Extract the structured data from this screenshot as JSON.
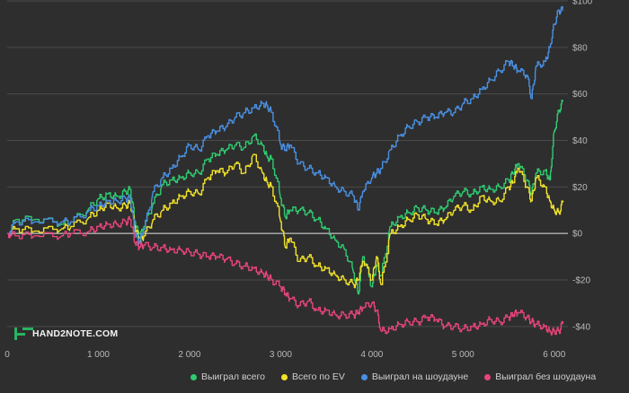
{
  "watermark": "HAND2NOTE.COM",
  "chart_data": {
    "type": "line",
    "title": "",
    "xlabel": "",
    "ylabel": "",
    "xlim": [
      0,
      6150
    ],
    "ylim": [
      -47,
      100
    ],
    "x_ticks": [
      0,
      1000,
      2000,
      3000,
      4000,
      5000,
      6000
    ],
    "x_tick_labels": [
      "0",
      "1 000",
      "2 000",
      "3 000",
      "4 000",
      "5 000",
      "6 000"
    ],
    "y_ticks": [
      100,
      80,
      60,
      40,
      20,
      0,
      -20,
      -40
    ],
    "y_tick_labels": [
      "$100",
      "$80",
      "$60",
      "$40",
      "$20",
      "$0",
      "-$20",
      "-$40"
    ],
    "grid": true,
    "legend_position": "bottom",
    "series": [
      {
        "name": "Выиграл всего",
        "color": "#2ecc71",
        "x": [
          0,
          100,
          300,
          600,
          700,
          900,
          1000,
          1100,
          1200,
          1300,
          1350,
          1400,
          1450,
          1500,
          1600,
          1700,
          1800,
          1900,
          2000,
          2100,
          2200,
          2300,
          2400,
          2500,
          2600,
          2700,
          2800,
          2850,
          2900,
          3000,
          3050,
          3100,
          3200,
          3300,
          3400,
          3500,
          3600,
          3700,
          3800,
          3850,
          3900,
          4000,
          4050,
          4100,
          4200,
          4300,
          4400,
          4500,
          4600,
          4700,
          4800,
          4900,
          5000,
          5100,
          5200,
          5300,
          5400,
          5500,
          5550,
          5600,
          5700,
          5750,
          5800,
          5900,
          5950,
          6000,
          6050,
          6100
        ],
        "values": [
          0,
          6,
          6,
          4,
          5,
          11,
          15,
          17,
          16,
          18,
          19,
          5,
          -2,
          3,
          13,
          21,
          23,
          24,
          26,
          26,
          32,
          34,
          36,
          38,
          37,
          42,
          38,
          33,
          32,
          15,
          7,
          10,
          10,
          9,
          6,
          2,
          -3,
          -7,
          -17,
          -26,
          -10,
          -23,
          -14,
          -18,
          3,
          7,
          9,
          11,
          10,
          9,
          11,
          16,
          18,
          17,
          20,
          19,
          20,
          23,
          26,
          30,
          23,
          17,
          26,
          27,
          23,
          44,
          53,
          57
        ]
      },
      {
        "name": "Всего по EV",
        "color": "#f1e229",
        "x": [
          0,
          100,
          300,
          600,
          700,
          900,
          1000,
          1100,
          1200,
          1300,
          1350,
          1400,
          1450,
          1500,
          1600,
          1700,
          1800,
          1900,
          2000,
          2100,
          2200,
          2300,
          2400,
          2500,
          2600,
          2700,
          2800,
          2850,
          2900,
          3000,
          3050,
          3100,
          3200,
          3300,
          3400,
          3500,
          3600,
          3700,
          3800,
          3850,
          3900,
          4000,
          4050,
          4100,
          4200,
          4300,
          4400,
          4500,
          4600,
          4700,
          4800,
          4900,
          5000,
          5100,
          5200,
          5300,
          5400,
          5500,
          5550,
          5600,
          5700,
          5750,
          5800,
          5900,
          5950,
          6000,
          6050,
          6100
        ],
        "values": [
          0,
          2,
          1,
          2,
          3,
          7,
          10,
          13,
          11,
          12,
          13,
          3,
          -4,
          -1,
          6,
          10,
          13,
          16,
          18,
          17,
          24,
          27,
          26,
          30,
          26,
          34,
          26,
          22,
          20,
          5,
          -6,
          -2,
          -12,
          -10,
          -14,
          -15,
          -18,
          -20,
          -22,
          -20,
          -12,
          -20,
          -10,
          -22,
          0,
          3,
          6,
          8,
          6,
          4,
          6,
          10,
          12,
          10,
          16,
          14,
          14,
          20,
          22,
          28,
          20,
          14,
          24,
          20,
          14,
          10,
          9,
          14
        ]
      },
      {
        "name": "Выиграл на шоудауне",
        "color": "#4a90e2",
        "x": [
          0,
          100,
          300,
          600,
          700,
          900,
          1000,
          1100,
          1200,
          1300,
          1350,
          1400,
          1450,
          1500,
          1600,
          1700,
          1800,
          1900,
          2000,
          2100,
          2200,
          2300,
          2400,
          2500,
          2600,
          2700,
          2800,
          2850,
          2900,
          3000,
          3050,
          3100,
          3200,
          3300,
          3400,
          3500,
          3600,
          3700,
          3800,
          3850,
          3900,
          4000,
          4050,
          4100,
          4200,
          4300,
          4400,
          4500,
          4600,
          4700,
          4800,
          4900,
          5000,
          5100,
          5200,
          5300,
          5400,
          5500,
          5550,
          5600,
          5700,
          5750,
          5800,
          5900,
          5950,
          6000,
          6050,
          6100
        ],
        "values": [
          0,
          5,
          5,
          5,
          5,
          10,
          12,
          14,
          14,
          15,
          15,
          0,
          -4,
          2,
          18,
          24,
          28,
          33,
          38,
          36,
          42,
          44,
          46,
          50,
          52,
          54,
          56,
          55,
          52,
          38,
          36,
          38,
          30,
          28,
          26,
          24,
          20,
          18,
          16,
          10,
          18,
          24,
          26,
          28,
          36,
          42,
          46,
          48,
          50,
          50,
          52,
          52,
          56,
          58,
          62,
          66,
          70,
          74,
          72,
          70,
          68,
          58,
          72,
          74,
          80,
          90,
          96,
          96
        ]
      },
      {
        "name": "Выиграл без шоудауна",
        "color": "#e8457a",
        "x": [
          0,
          100,
          300,
          600,
          700,
          900,
          1000,
          1100,
          1200,
          1300,
          1350,
          1400,
          1450,
          1500,
          1600,
          1700,
          1800,
          1900,
          2000,
          2100,
          2200,
          2300,
          2400,
          2500,
          2600,
          2700,
          2800,
          2850,
          2900,
          3000,
          3050,
          3100,
          3200,
          3300,
          3400,
          3500,
          3600,
          3700,
          3800,
          3850,
          3900,
          4000,
          4050,
          4100,
          4200,
          4300,
          4400,
          4500,
          4600,
          4700,
          4800,
          4900,
          5000,
          5100,
          5200,
          5300,
          5400,
          5500,
          5550,
          5600,
          5700,
          5750,
          5800,
          5900,
          5950,
          6000,
          6050,
          6100
        ],
        "values": [
          0,
          -1,
          -1,
          -1,
          0,
          1,
          3,
          4,
          4,
          5,
          6,
          -4,
          -6,
          -5,
          -6,
          -6,
          -7,
          -7,
          -8,
          -9,
          -10,
          -10,
          -11,
          -13,
          -14,
          -15,
          -17,
          -18,
          -20,
          -23,
          -26,
          -28,
          -31,
          -29,
          -33,
          -33,
          -35,
          -35,
          -35,
          -34,
          -32,
          -30,
          -33,
          -42,
          -41,
          -39,
          -38,
          -38,
          -36,
          -37,
          -40,
          -40,
          -41,
          -40,
          -39,
          -37,
          -38,
          -36,
          -35,
          -34,
          -36,
          -38,
          -39,
          -40,
          -42,
          -42,
          -42,
          -38
        ]
      }
    ]
  }
}
